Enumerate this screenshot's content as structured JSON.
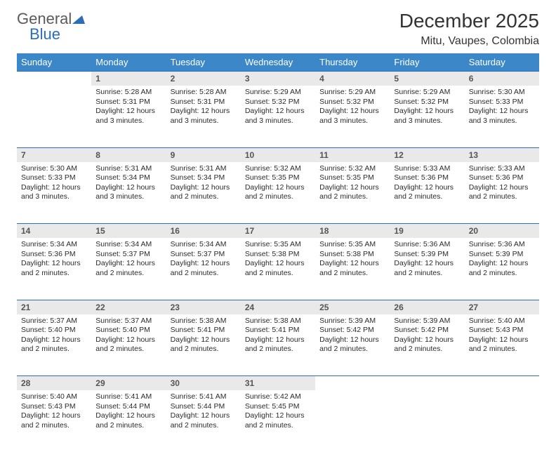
{
  "logo": {
    "part1": "General",
    "part2": "Blue"
  },
  "title": "December 2025",
  "subtitle": "Mitu, Vaupes, Colombia",
  "day_headers": [
    "Sunday",
    "Monday",
    "Tuesday",
    "Wednesday",
    "Thursday",
    "Friday",
    "Saturday"
  ],
  "colors": {
    "header_bg": "#3b87c8",
    "accent": "#2a6db8",
    "daynum_bg": "#e9e9e9",
    "text": "#2b2b2b"
  },
  "weeks": [
    {
      "nums": [
        "",
        "1",
        "2",
        "3",
        "4",
        "5",
        "6"
      ],
      "cells": [
        null,
        {
          "sr": "5:28 AM",
          "ss": "5:31 PM",
          "dl": "12 hours and 3 minutes."
        },
        {
          "sr": "5:28 AM",
          "ss": "5:31 PM",
          "dl": "12 hours and 3 minutes."
        },
        {
          "sr": "5:29 AM",
          "ss": "5:32 PM",
          "dl": "12 hours and 3 minutes."
        },
        {
          "sr": "5:29 AM",
          "ss": "5:32 PM",
          "dl": "12 hours and 3 minutes."
        },
        {
          "sr": "5:29 AM",
          "ss": "5:32 PM",
          "dl": "12 hours and 3 minutes."
        },
        {
          "sr": "5:30 AM",
          "ss": "5:33 PM",
          "dl": "12 hours and 3 minutes."
        }
      ]
    },
    {
      "nums": [
        "7",
        "8",
        "9",
        "10",
        "11",
        "12",
        "13"
      ],
      "cells": [
        {
          "sr": "5:30 AM",
          "ss": "5:33 PM",
          "dl": "12 hours and 3 minutes."
        },
        {
          "sr": "5:31 AM",
          "ss": "5:34 PM",
          "dl": "12 hours and 3 minutes."
        },
        {
          "sr": "5:31 AM",
          "ss": "5:34 PM",
          "dl": "12 hours and 2 minutes."
        },
        {
          "sr": "5:32 AM",
          "ss": "5:35 PM",
          "dl": "12 hours and 2 minutes."
        },
        {
          "sr": "5:32 AM",
          "ss": "5:35 PM",
          "dl": "12 hours and 2 minutes."
        },
        {
          "sr": "5:33 AM",
          "ss": "5:36 PM",
          "dl": "12 hours and 2 minutes."
        },
        {
          "sr": "5:33 AM",
          "ss": "5:36 PM",
          "dl": "12 hours and 2 minutes."
        }
      ]
    },
    {
      "nums": [
        "14",
        "15",
        "16",
        "17",
        "18",
        "19",
        "20"
      ],
      "cells": [
        {
          "sr": "5:34 AM",
          "ss": "5:36 PM",
          "dl": "12 hours and 2 minutes."
        },
        {
          "sr": "5:34 AM",
          "ss": "5:37 PM",
          "dl": "12 hours and 2 minutes."
        },
        {
          "sr": "5:34 AM",
          "ss": "5:37 PM",
          "dl": "12 hours and 2 minutes."
        },
        {
          "sr": "5:35 AM",
          "ss": "5:38 PM",
          "dl": "12 hours and 2 minutes."
        },
        {
          "sr": "5:35 AM",
          "ss": "5:38 PM",
          "dl": "12 hours and 2 minutes."
        },
        {
          "sr": "5:36 AM",
          "ss": "5:39 PM",
          "dl": "12 hours and 2 minutes."
        },
        {
          "sr": "5:36 AM",
          "ss": "5:39 PM",
          "dl": "12 hours and 2 minutes."
        }
      ]
    },
    {
      "nums": [
        "21",
        "22",
        "23",
        "24",
        "25",
        "26",
        "27"
      ],
      "cells": [
        {
          "sr": "5:37 AM",
          "ss": "5:40 PM",
          "dl": "12 hours and 2 minutes."
        },
        {
          "sr": "5:37 AM",
          "ss": "5:40 PM",
          "dl": "12 hours and 2 minutes."
        },
        {
          "sr": "5:38 AM",
          "ss": "5:41 PM",
          "dl": "12 hours and 2 minutes."
        },
        {
          "sr": "5:38 AM",
          "ss": "5:41 PM",
          "dl": "12 hours and 2 minutes."
        },
        {
          "sr": "5:39 AM",
          "ss": "5:42 PM",
          "dl": "12 hours and 2 minutes."
        },
        {
          "sr": "5:39 AM",
          "ss": "5:42 PM",
          "dl": "12 hours and 2 minutes."
        },
        {
          "sr": "5:40 AM",
          "ss": "5:43 PM",
          "dl": "12 hours and 2 minutes."
        }
      ]
    },
    {
      "nums": [
        "28",
        "29",
        "30",
        "31",
        "",
        "",
        ""
      ],
      "cells": [
        {
          "sr": "5:40 AM",
          "ss": "5:43 PM",
          "dl": "12 hours and 2 minutes."
        },
        {
          "sr": "5:41 AM",
          "ss": "5:44 PM",
          "dl": "12 hours and 2 minutes."
        },
        {
          "sr": "5:41 AM",
          "ss": "5:44 PM",
          "dl": "12 hours and 2 minutes."
        },
        {
          "sr": "5:42 AM",
          "ss": "5:45 PM",
          "dl": "12 hours and 2 minutes."
        },
        null,
        null,
        null
      ]
    }
  ],
  "labels": {
    "sunrise": "Sunrise: ",
    "sunset": "Sunset: ",
    "daylight": "Daylight: "
  }
}
